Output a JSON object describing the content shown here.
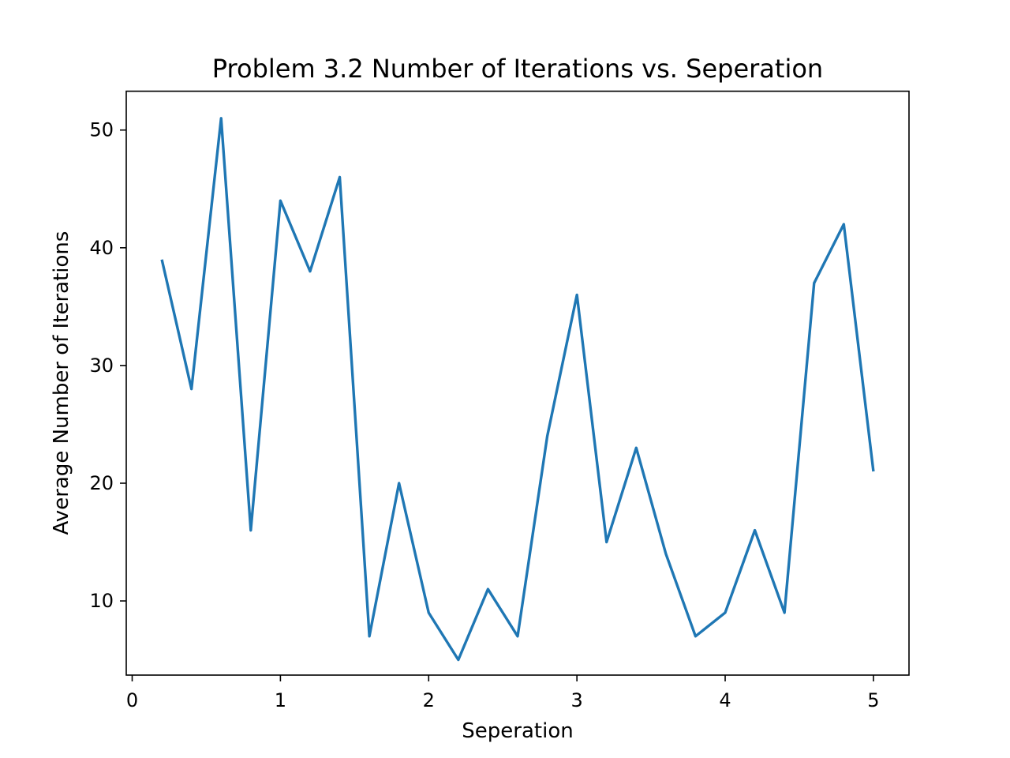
{
  "chart_data": {
    "type": "line",
    "title": "Problem 3.2 Number of Iterations vs. Seperation",
    "xlabel": "Seperation",
    "ylabel": "Average Number of Iterations",
    "xlim": [
      -0.04,
      5.24
    ],
    "ylim": [
      3.7,
      53.3
    ],
    "xticks": [
      0,
      1,
      2,
      3,
      4,
      5
    ],
    "xtick_labels": [
      "0",
      "1",
      "2",
      "3",
      "4",
      "5"
    ],
    "yticks": [
      10,
      20,
      30,
      40,
      50
    ],
    "ytick_labels": [
      "10",
      "20",
      "30",
      "40",
      "50"
    ],
    "grid": false,
    "series": [
      {
        "color": "#1f77b4",
        "x": [
          0.2,
          0.4,
          0.6,
          0.8,
          1.0,
          1.2,
          1.4,
          1.6,
          1.8,
          2.0,
          2.2,
          2.4,
          2.6,
          2.8,
          3.0,
          3.2,
          3.4,
          3.6,
          3.8,
          4.0,
          4.2,
          4.4,
          4.6,
          4.8,
          5.0
        ],
        "y": [
          39,
          28,
          51,
          16,
          44,
          38,
          46,
          7,
          20,
          9,
          5,
          11,
          7,
          24,
          36,
          15,
          23,
          14,
          7,
          9,
          16,
          9,
          37,
          42,
          21
        ]
      }
    ]
  }
}
